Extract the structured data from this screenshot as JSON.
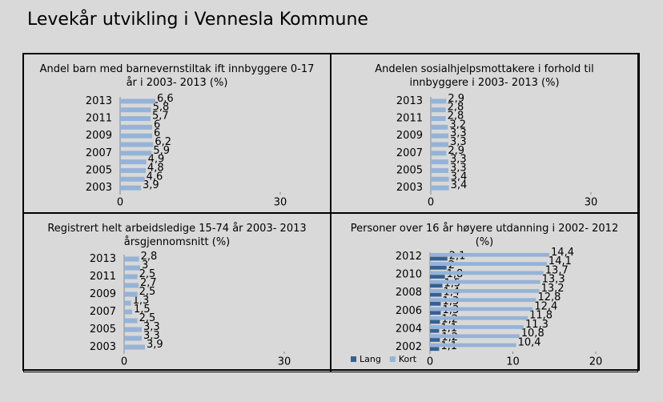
{
  "title": "Levekår utvikling i Vennesla Kommune",
  "chart_data": [
    {
      "type": "bar",
      "title": "Andel barn med barnevernstiltak ift innbyggere  0-17 år i 2003- 2013 (%)",
      "categories": [
        "2003",
        null,
        "2005",
        null,
        "2007",
        null,
        "2009",
        null,
        "2011",
        null,
        "2013"
      ],
      "values": [
        3.9,
        4.6,
        4.8,
        4.9,
        5.9,
        6.2,
        6,
        6,
        5.7,
        5.8,
        6.6
      ],
      "value_labels": [
        "3,9",
        "4,6",
        "4,8",
        "4,9",
        "5,9",
        "6,2",
        "6",
        "6",
        "5,7",
        "5,8",
        "6,6"
      ],
      "color": "#95b3d7",
      "xlim": [
        0,
        30
      ],
      "xticks": [
        0,
        30
      ]
    },
    {
      "type": "bar",
      "title": "Andelen sosialhjelpsmottakere  i forhold til innbyggere  i 2003- 2013 (%)",
      "categories": [
        "2003",
        null,
        "2005",
        null,
        "2007",
        null,
        "2009",
        null,
        "2011",
        null,
        "2013"
      ],
      "values": [
        3.4,
        3.4,
        3.3,
        3.3,
        2.9,
        3.3,
        3.3,
        3.2,
        2.8,
        2.8,
        2.9
      ],
      "value_labels": [
        "3,4",
        "3,4",
        "3,3",
        "3,3",
        "2,9",
        "3,3",
        "3,3",
        "3,2",
        "2,8",
        "2,8",
        "2,9"
      ],
      "color": "#95b3d7",
      "xlim": [
        0,
        30
      ],
      "xticks": [
        0,
        30
      ]
    },
    {
      "type": "bar",
      "title": "Registrert helt arbeidsledige  15-74 år 2003- 2013 årsgjennomsnitt  (%)",
      "categories": [
        "2003",
        null,
        "2005",
        null,
        "2007",
        null,
        "2009",
        null,
        "2011",
        null,
        "2013"
      ],
      "values": [
        3.9,
        3.3,
        3.3,
        2.5,
        1.5,
        1.3,
        2.5,
        2.7,
        2.5,
        3,
        2.8
      ],
      "value_labels": [
        "3,9",
        "3,3",
        "3,3",
        "2,5",
        "1,5",
        "1,3",
        "2,5",
        "2,7",
        "2,5",
        "3",
        "2,8"
      ],
      "color": "#95b3d7",
      "xlim": [
        0,
        30
      ],
      "xticks": [
        0,
        30
      ]
    },
    {
      "type": "bar",
      "title": "Personer over 16 år høyere utdanning  i 2002- 2012 (%)",
      "categories": [
        "2002",
        null,
        "2004",
        null,
        "2006",
        null,
        "2008",
        null,
        "2010",
        null,
        "2012"
      ],
      "series": [
        {
          "name": "Lang",
          "color": "#366092",
          "values": [
            1.1,
            1.2,
            1.1,
            1.2,
            1.3,
            1.3,
            1.4,
            1.5,
            1.8,
            2,
            2.1
          ],
          "value_labels": [
            "1,1",
            "1,2",
            "1,1",
            "1,2",
            "1,3",
            "1,3",
            "1,4",
            "1,5",
            "1,8",
            "2",
            "2,1"
          ]
        },
        {
          "name": "Kort",
          "color": "#95b3d7",
          "values": [
            10.4,
            10.8,
            11.3,
            11.8,
            12.4,
            12.8,
            13.2,
            13.3,
            13.7,
            14.1,
            14.4
          ],
          "value_labels": [
            "10,4",
            "10,8",
            "11,3",
            "11,8",
            "12,4",
            "12,8",
            "13,2",
            "13,3",
            "13,7",
            "14,1",
            "14,4"
          ]
        }
      ],
      "xlim": [
        0,
        20
      ],
      "xticks": [
        0,
        10,
        20
      ],
      "legend": "bottom-left"
    }
  ]
}
